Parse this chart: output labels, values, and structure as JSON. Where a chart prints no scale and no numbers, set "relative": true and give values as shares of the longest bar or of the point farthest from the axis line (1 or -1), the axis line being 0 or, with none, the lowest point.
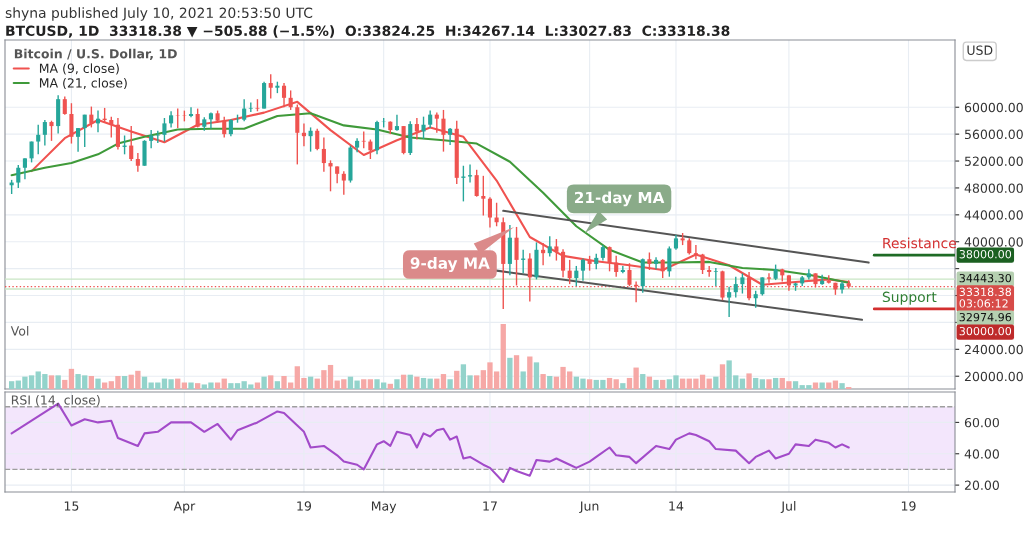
{
  "chart_data": [
    {
      "type": "candlestick",
      "title": "shyna published July 10, 2021 20:53:50 UTC",
      "subtitle": "BTCUSD, 1D  33318.38 ▼ −505.88 (−1.5%)  O:33824.25  H:34267.14  L:33027.83  C:33318.38",
      "ylabel": "USD",
      "legend_title": "Bitcoin / U.S. Dollar, 1D",
      "x": [
        "2021-03-06",
        "2021-03-07",
        "2021-03-08",
        "2021-03-09",
        "2021-03-10",
        "2021-03-11",
        "2021-03-12",
        "2021-03-13",
        "2021-03-14",
        "2021-03-15",
        "2021-03-16",
        "2021-03-17",
        "2021-03-18",
        "2021-03-19",
        "2021-03-20",
        "2021-03-21",
        "2021-03-22",
        "2021-03-23",
        "2021-03-24",
        "2021-03-25",
        "2021-03-26",
        "2021-03-27",
        "2021-03-28",
        "2021-03-29",
        "2021-03-30",
        "2021-03-31",
        "2021-04-01",
        "2021-04-02",
        "2021-04-03",
        "2021-04-04",
        "2021-04-05",
        "2021-04-06",
        "2021-04-07",
        "2021-04-08",
        "2021-04-09",
        "2021-04-10",
        "2021-04-11",
        "2021-04-12",
        "2021-04-13",
        "2021-04-14",
        "2021-04-15",
        "2021-04-16",
        "2021-04-17",
        "2021-04-18",
        "2021-04-19",
        "2021-04-20",
        "2021-04-21",
        "2021-04-22",
        "2021-04-23",
        "2021-04-24",
        "2021-04-25",
        "2021-04-26",
        "2021-04-27",
        "2021-04-28",
        "2021-04-29",
        "2021-04-30",
        "2021-05-01",
        "2021-05-02",
        "2021-05-03",
        "2021-05-04",
        "2021-05-05",
        "2021-05-06",
        "2021-05-07",
        "2021-05-08",
        "2021-05-09",
        "2021-05-10",
        "2021-05-11",
        "2021-05-12",
        "2021-05-13",
        "2021-05-14",
        "2021-05-15",
        "2021-05-16",
        "2021-05-17",
        "2021-05-18",
        "2021-05-19",
        "2021-05-20",
        "2021-05-21",
        "2021-05-22",
        "2021-05-23",
        "2021-05-24",
        "2021-05-25",
        "2021-05-26",
        "2021-05-27",
        "2021-05-28",
        "2021-05-29",
        "2021-05-30",
        "2021-05-31",
        "2021-06-01",
        "2021-06-02",
        "2021-06-03",
        "2021-06-04",
        "2021-06-05",
        "2021-06-06",
        "2021-06-07",
        "2021-06-08",
        "2021-06-09",
        "2021-06-10",
        "2021-06-11",
        "2021-06-12",
        "2021-06-13",
        "2021-06-14",
        "2021-06-15",
        "2021-06-16",
        "2021-06-17",
        "2021-06-18",
        "2021-06-19",
        "2021-06-20",
        "2021-06-21",
        "2021-06-22",
        "2021-06-23",
        "2021-06-24",
        "2021-06-25",
        "2021-06-26",
        "2021-06-27",
        "2021-06-28",
        "2021-06-29",
        "2021-06-30",
        "2021-07-01",
        "2021-07-02",
        "2021-07-03",
        "2021-07-04",
        "2021-07-05",
        "2021-07-06",
        "2021-07-07",
        "2021-07-08",
        "2021-07-09",
        "2021-07-10"
      ],
      "ohlc": [
        [
          48400,
          49200,
          47100,
          48800
        ],
        [
          48800,
          51400,
          48000,
          51000
        ],
        [
          51000,
          52400,
          49300,
          52400
        ],
        [
          52400,
          54900,
          51800,
          54900
        ],
        [
          54900,
          57400,
          53000,
          55900
        ],
        [
          55900,
          58100,
          54300,
          57800
        ],
        [
          57800,
          58000,
          55000,
          57200
        ],
        [
          57200,
          61800,
          56100,
          61200
        ],
        [
          61200,
          61600,
          58900,
          59000
        ],
        [
          59000,
          60600,
          54600,
          55600
        ],
        [
          55600,
          56900,
          53400,
          56900
        ],
        [
          56900,
          58900,
          54100,
          58900
        ],
        [
          58900,
          60100,
          57000,
          57600
        ],
        [
          57600,
          59500,
          56300,
          58300
        ],
        [
          58300,
          59900,
          57800,
          58100
        ],
        [
          58100,
          58600,
          55500,
          57400
        ],
        [
          57400,
          58400,
          53700,
          54100
        ],
        [
          54100,
          55800,
          53000,
          54300
        ],
        [
          54300,
          57200,
          52000,
          52300
        ],
        [
          52300,
          53200,
          50400,
          51300
        ],
        [
          51300,
          55100,
          51300,
          55000
        ],
        [
          55000,
          56600,
          53900,
          55800
        ],
        [
          55800,
          56500,
          54700,
          55900
        ],
        [
          55900,
          58400,
          54900,
          57600
        ],
        [
          57600,
          59400,
          57000,
          58800
        ],
        [
          58800,
          59800,
          56900,
          58750
        ],
        [
          58750,
          59500,
          57900,
          58700
        ],
        [
          58700,
          60000,
          58500,
          59000
        ],
        [
          59000,
          59800,
          57000,
          57100
        ],
        [
          57100,
          58500,
          56500,
          58200
        ],
        [
          58200,
          59200,
          56800,
          59100
        ],
        [
          59100,
          59500,
          57700,
          58000
        ],
        [
          58000,
          58600,
          55500,
          56000
        ],
        [
          56000,
          58200,
          55700,
          58100
        ],
        [
          58100,
          58900,
          57700,
          58150
        ],
        [
          58150,
          61200,
          57900,
          59800
        ],
        [
          59800,
          60700,
          59300,
          59900
        ],
        [
          59900,
          61200,
          59400,
          59800
        ],
        [
          59800,
          63800,
          59800,
          63600
        ],
        [
          63600,
          64900,
          61300,
          62900
        ],
        [
          62900,
          63800,
          62100,
          63200
        ],
        [
          63200,
          63600,
          60000,
          61400
        ],
        [
          61400,
          62500,
          59600,
          60000
        ],
        [
          60000,
          60400,
          51500,
          56200
        ],
        [
          56200,
          57600,
          54200,
          55700
        ],
        [
          55700,
          57000,
          53400,
          56500
        ],
        [
          56500,
          56800,
          53600,
          53800
        ],
        [
          53800,
          55500,
          50400,
          51700
        ],
        [
          51700,
          52100,
          47500,
          51200
        ],
        [
          51200,
          51200,
          48700,
          50100
        ],
        [
          50100,
          50500,
          47000,
          49100
        ],
        [
          49100,
          54300,
          48800,
          54000
        ],
        [
          54000,
          55400,
          53300,
          55000
        ],
        [
          55000,
          56400,
          53900,
          54900
        ],
        [
          54900,
          55200,
          52300,
          53600
        ],
        [
          53600,
          58000,
          53000,
          57800
        ],
        [
          57800,
          58400,
          57000,
          57850
        ],
        [
          57850,
          57900,
          56000,
          56600
        ],
        [
          56600,
          58900,
          56500,
          57200
        ],
        [
          57200,
          57200,
          53000,
          53200
        ],
        [
          53200,
          57900,
          52900,
          57500
        ],
        [
          57500,
          58400,
          55200,
          56400
        ],
        [
          56400,
          58600,
          55300,
          57400
        ],
        [
          57400,
          59500,
          56900,
          58900
        ],
        [
          58900,
          59200,
          56200,
          58300
        ],
        [
          58300,
          59600,
          53400,
          55900
        ],
        [
          55900,
          56900,
          54400,
          56800
        ],
        [
          56800,
          58000,
          48600,
          49500
        ],
        [
          49500,
          51300,
          46000,
          49700
        ],
        [
          49700,
          51500,
          48800,
          49900
        ],
        [
          49900,
          50700,
          46700,
          46800
        ],
        [
          46800,
          49800,
          43900,
          46400
        ],
        [
          46400,
          46600,
          42100,
          43600
        ],
        [
          43600,
          45800,
          42300,
          42900
        ],
        [
          42900,
          43600,
          30000,
          36700
        ],
        [
          36700,
          42500,
          35000,
          40600
        ],
        [
          40600,
          42200,
          33500,
          37300
        ],
        [
          37300,
          38800,
          35300,
          37500
        ],
        [
          37500,
          38300,
          31100,
          34700
        ],
        [
          34700,
          39900,
          34400,
          38800
        ],
        [
          38800,
          39800,
          36500,
          38300
        ],
        [
          38300,
          40800,
          37800,
          39300
        ],
        [
          39300,
          40400,
          37200,
          38500
        ],
        [
          38500,
          38900,
          34700,
          35700
        ],
        [
          35700,
          37300,
          33700,
          34600
        ],
        [
          34600,
          36400,
          33400,
          35700
        ],
        [
          35700,
          37500,
          34200,
          37300
        ],
        [
          37300,
          37900,
          35700,
          36700
        ],
        [
          36700,
          38200,
          35900,
          37600
        ],
        [
          37600,
          39500,
          37200,
          39200
        ],
        [
          39200,
          39300,
          35600,
          36900
        ],
        [
          36900,
          37900,
          34800,
          35500
        ],
        [
          35500,
          36400,
          35300,
          35800
        ],
        [
          35800,
          36800,
          33400,
          33600
        ],
        [
          33600,
          34100,
          31000,
          33400
        ],
        [
          33400,
          37500,
          32400,
          37400
        ],
        [
          37400,
          38400,
          35800,
          36700
        ],
        [
          36700,
          37700,
          35900,
          37300
        ],
        [
          37300,
          37400,
          34600,
          35600
        ],
        [
          35600,
          39300,
          34800,
          39000
        ],
        [
          39000,
          41000,
          38800,
          40500
        ],
        [
          40500,
          41300,
          39500,
          40200
        ],
        [
          40200,
          40500,
          38100,
          38300
        ],
        [
          38300,
          39500,
          37400,
          38100
        ],
        [
          38100,
          38200,
          35200,
          35800
        ],
        [
          35800,
          36400,
          34800,
          35500
        ],
        [
          35500,
          36100,
          33400,
          35600
        ],
        [
          35600,
          35700,
          31300,
          31700
        ],
        [
          31700,
          33300,
          28800,
          32500
        ],
        [
          32500,
          34800,
          31700,
          33700
        ],
        [
          33700,
          35300,
          32300,
          34700
        ],
        [
          34700,
          35500,
          31300,
          31600
        ],
        [
          31600,
          32700,
          30200,
          32200
        ],
        [
          32200,
          34700,
          32000,
          34700
        ],
        [
          34700,
          35300,
          33900,
          34500
        ],
        [
          34500,
          36600,
          34300,
          35900
        ],
        [
          35900,
          36000,
          34100,
          35000
        ],
        [
          35000,
          35000,
          32700,
          33500
        ],
        [
          33500,
          33900,
          32700,
          33800
        ],
        [
          33800,
          34900,
          33400,
          34700
        ],
        [
          34700,
          35900,
          34400,
          35300
        ],
        [
          35300,
          35300,
          33200,
          33700
        ],
        [
          33700,
          35100,
          33600,
          34200
        ],
        [
          34200,
          35000,
          33800,
          33900
        ],
        [
          33900,
          33900,
          32100,
          32900
        ],
        [
          32900,
          34100,
          32300,
          33800
        ],
        [
          33824.25,
          34267.14,
          33027.83,
          33318.38
        ]
      ],
      "colors": [
        "#26a69a",
        "#26a69a",
        "#26a69a",
        "#26a69a",
        "#26a69a",
        "#26a69a",
        "#ef5350",
        "#26a69a",
        "#ef5350",
        "#ef5350",
        "#26a69a",
        "#26a69a",
        "#ef5350",
        "#26a69a",
        "#ef5350",
        "#ef5350",
        "#ef5350",
        "#26a69a",
        "#ef5350",
        "#ef5350",
        "#26a69a",
        "#26a69a",
        "#26a69a",
        "#26a69a",
        "#26a69a",
        "#ef5350",
        "#ef5350",
        "#26a69a",
        "#ef5350",
        "#26a69a",
        "#26a69a",
        "#ef5350",
        "#ef5350",
        "#26a69a",
        "#26a69a",
        "#26a69a",
        "#26a69a",
        "#ef5350",
        "#26a69a",
        "#ef5350",
        "#26a69a",
        "#ef5350",
        "#ef5350",
        "#ef5350",
        "#ef5350",
        "#26a69a",
        "#ef5350",
        "#ef5350",
        "#ef5350",
        "#ef5350",
        "#ef5350",
        "#26a69a",
        "#26a69a",
        "#ef5350",
        "#ef5350",
        "#26a69a",
        "#26a69a",
        "#ef5350",
        "#26a69a",
        "#ef5350",
        "#26a69a",
        "#ef5350",
        "#26a69a",
        "#26a69a",
        "#ef5350",
        "#ef5350",
        "#26a69a",
        "#ef5350",
        "#26a69a",
        "#26a69a",
        "#ef5350",
        "#ef5350",
        "#ef5350",
        "#ef5350",
        "#ef5350",
        "#26a69a",
        "#ef5350",
        "#26a69a",
        "#ef5350",
        "#26a69a",
        "#ef5350",
        "#26a69a",
        "#ef5350",
        "#ef5350",
        "#ef5350",
        "#26a69a",
        "#26a69a",
        "#ef5350",
        "#26a69a",
        "#26a69a",
        "#ef5350",
        "#ef5350",
        "#26a69a",
        "#ef5350",
        "#ef5350",
        "#26a69a",
        "#ef5350",
        "#26a69a",
        "#ef5350",
        "#26a69a",
        "#26a69a",
        "#ef5350",
        "#ef5350",
        "#ef5350",
        "#ef5350",
        "#ef5350",
        "#26a69a",
        "#ef5350",
        "#26a69a",
        "#26a69a",
        "#26a69a",
        "#ef5350",
        "#26a69a",
        "#26a69a",
        "#ef5350",
        "#26a69a",
        "#ef5350",
        "#ef5350",
        "#26a69a",
        "#26a69a",
        "#26a69a",
        "#ef5350",
        "#26a69a",
        "#ef5350",
        "#ef5350",
        "#26a69a",
        "#ef5350"
      ],
      "series": [
        {
          "type": "line",
          "name": "MA (9, close)",
          "color": "#f0524f",
          "x": [
            "2021-03-09",
            "2021-03-14",
            "2021-03-19",
            "2021-03-24",
            "2021-03-29",
            "2021-04-03",
            "2021-04-08",
            "2021-04-13",
            "2021-04-18",
            "2021-04-23",
            "2021-04-28",
            "2021-05-03",
            "2021-05-08",
            "2021-05-13",
            "2021-05-18",
            "2021-05-23",
            "2021-05-28",
            "2021-06-02",
            "2021-06-07",
            "2021-06-12",
            "2021-06-17",
            "2021-06-22",
            "2021-06-27",
            "2021-07-02",
            "2021-07-07",
            "2021-07-10"
          ],
          "values": [
            50500,
            55400,
            58100,
            56400,
            54800,
            57400,
            58100,
            59200,
            60800,
            56600,
            52900,
            55100,
            57000,
            55600,
            49100,
            40700,
            37900,
            37100,
            36500,
            35800,
            38100,
            36500,
            33600,
            34000,
            34400,
            34000
          ]
        },
        {
          "type": "line",
          "name": "MA (21, close)",
          "color": "#3f9a3a",
          "x": [
            "2021-03-06",
            "2021-03-11",
            "2021-03-15",
            "2021-03-19",
            "2021-03-22",
            "2021-03-26",
            "2021-03-31",
            "2021-04-05",
            "2021-04-10",
            "2021-04-15",
            "2021-04-20",
            "2021-04-25",
            "2021-04-30",
            "2021-05-05",
            "2021-05-10",
            "2021-05-15",
            "2021-05-20",
            "2021-05-25",
            "2021-05-30",
            "2021-06-04",
            "2021-06-09",
            "2021-06-14",
            "2021-06-19",
            "2021-06-24",
            "2021-06-29",
            "2021-07-04",
            "2021-07-10"
          ],
          "values": [
            49900,
            51000,
            51700,
            53000,
            54600,
            55600,
            56700,
            56800,
            56800,
            58700,
            59100,
            57300,
            56700,
            55500,
            55100,
            54600,
            51900,
            47300,
            42300,
            38800,
            36900,
            36900,
            37000,
            36100,
            35800,
            35100,
            33900
          ]
        },
        {
          "type": "line",
          "color": "#555555",
          "x": [
            "2021-05-19",
            "2021-07-13"
          ],
          "values": [
            44600,
            36900
          ]
        },
        {
          "type": "line",
          "color": "#555555",
          "x": [
            "2021-05-18",
            "2021-07-12"
          ],
          "values": [
            35700,
            28400
          ]
        }
      ],
      "xlim": [
        "2021-03-05",
        "2021-07-26"
      ],
      "ylim": [
        18100,
        70000
      ],
      "xticks": [
        {
          "value": "2021-03-15",
          "label": null
        },
        {
          "value": "2021-04-01",
          "label": null
        },
        {
          "value": "2021-04-19",
          "label": null
        },
        {
          "value": "2021-05-01",
          "label": null
        },
        {
          "value": "2021-05-17",
          "label": null
        },
        {
          "value": "2021-06-01",
          "label": null
        },
        {
          "value": "2021-06-14",
          "label": null
        },
        {
          "value": "2021-07-01",
          "label": null
        },
        {
          "value": "2021-07-19",
          "label": null
        }
      ],
      "yticks": [
        {
          "value": 20000,
          "label": "20000.00"
        },
        {
          "value": 24000,
          "label": "24000.00"
        },
        {
          "value": 28000,
          "label": null
        },
        {
          "value": 32000,
          "label": null
        },
        {
          "value": 36000,
          "label": null
        },
        {
          "value": 40000,
          "label": "40000.00"
        },
        {
          "value": 44000,
          "label": "44000.00"
        },
        {
          "value": 48000,
          "label": "48000.00"
        },
        {
          "value": 52000,
          "label": "52000.00"
        },
        {
          "value": 56000,
          "label": "56000.00"
        },
        {
          "value": 60000,
          "label": "60000.00"
        }
      ],
      "tick_labels": "y",
      "grid": true,
      "legend": "top left",
      "ref_lines": [
        {
          "axis": "y",
          "value": 38000,
          "label": "38000.00",
          "color": "#1e6b25"
        },
        {
          "axis": "y",
          "value": 34443.3,
          "label": "34443.30",
          "color": "#c9e6c4",
          "line_style": "solid"
        },
        {
          "axis": "y",
          "value": 33318.38,
          "label": "33318.38\n03:06:12",
          "color": "#ef5350",
          "line_style": "dotted"
        },
        {
          "axis": "y",
          "value": 32974.96,
          "label": "32974.96",
          "color": "#c9e6c4",
          "line_style": "solid"
        },
        {
          "axis": "y",
          "value": 30000,
          "label": "30000.00",
          "color": "#d32f2f"
        }
      ],
      "annotations": [
        {
          "text": "21-day MA",
          "x": "2021-05-31",
          "y": 41000
        },
        {
          "text": "9-day MA",
          "x": "2021-05-21",
          "y": 42400
        },
        {
          "text": "Resistance",
          "x": "2021-07-15",
          "y": 38000
        },
        {
          "text": "Support",
          "x": "2021-07-15",
          "y": 30000
        }
      ]
    },
    {
      "type": "bar",
      "relative": true,
      "title": "Vol",
      "tick_labels": false,
      "x": [
        "2021-03-06",
        "2021-03-07",
        "2021-03-08",
        "2021-03-09",
        "2021-03-10",
        "2021-03-11",
        "2021-03-12",
        "2021-03-13",
        "2021-03-14",
        "2021-03-15",
        "2021-03-16",
        "2021-03-17",
        "2021-03-18",
        "2021-03-19",
        "2021-03-20",
        "2021-03-21",
        "2021-03-22",
        "2021-03-23",
        "2021-03-24",
        "2021-03-25",
        "2021-03-26",
        "2021-03-27",
        "2021-03-28",
        "2021-03-29",
        "2021-03-30",
        "2021-03-31",
        "2021-04-01",
        "2021-04-02",
        "2021-04-03",
        "2021-04-04",
        "2021-04-05",
        "2021-04-06",
        "2021-04-07",
        "2021-04-08",
        "2021-04-09",
        "2021-04-10",
        "2021-04-11",
        "2021-04-12",
        "2021-04-13",
        "2021-04-14",
        "2021-04-15",
        "2021-04-16",
        "2021-04-17",
        "2021-04-18",
        "2021-04-19",
        "2021-04-20",
        "2021-04-21",
        "2021-04-22",
        "2021-04-23",
        "2021-04-24",
        "2021-04-25",
        "2021-04-26",
        "2021-04-27",
        "2021-04-28",
        "2021-04-29",
        "2021-04-30",
        "2021-05-01",
        "2021-05-02",
        "2021-05-03",
        "2021-05-04",
        "2021-05-05",
        "2021-05-06",
        "2021-05-07",
        "2021-05-08",
        "2021-05-09",
        "2021-05-10",
        "2021-05-11",
        "2021-05-12",
        "2021-05-13",
        "2021-05-14",
        "2021-05-15",
        "2021-05-16",
        "2021-05-17",
        "2021-05-18",
        "2021-05-19",
        "2021-05-20",
        "2021-05-21",
        "2021-05-22",
        "2021-05-23",
        "2021-05-24",
        "2021-05-25",
        "2021-05-26",
        "2021-05-27",
        "2021-05-28",
        "2021-05-29",
        "2021-05-30",
        "2021-05-31",
        "2021-06-01",
        "2021-06-02",
        "2021-06-03",
        "2021-06-04",
        "2021-06-05",
        "2021-06-06",
        "2021-06-07",
        "2021-06-08",
        "2021-06-09",
        "2021-06-10",
        "2021-06-11",
        "2021-06-12",
        "2021-06-13",
        "2021-06-14",
        "2021-06-15",
        "2021-06-16",
        "2021-06-17",
        "2021-06-18",
        "2021-06-19",
        "2021-06-20",
        "2021-06-21",
        "2021-06-22",
        "2021-06-23",
        "2021-06-24",
        "2021-06-25",
        "2021-06-26",
        "2021-06-27",
        "2021-06-28",
        "2021-06-29",
        "2021-06-30",
        "2021-07-01",
        "2021-07-02",
        "2021-07-03",
        "2021-07-04",
        "2021-07-05",
        "2021-07-06",
        "2021-07-07",
        "2021-07-08",
        "2021-07-09",
        "2021-07-10"
      ],
      "values": [
        0.12,
        0.13,
        0.19,
        0.21,
        0.27,
        0.23,
        0.21,
        0.21,
        0.14,
        0.31,
        0.23,
        0.21,
        0.2,
        0.16,
        0.1,
        0.12,
        0.2,
        0.2,
        0.22,
        0.28,
        0.19,
        0.1,
        0.1,
        0.16,
        0.15,
        0.16,
        0.1,
        0.1,
        0.09,
        0.07,
        0.1,
        0.1,
        0.16,
        0.09,
        0.09,
        0.12,
        0.07,
        0.1,
        0.19,
        0.21,
        0.12,
        0.2,
        0.1,
        0.35,
        0.17,
        0.19,
        0.16,
        0.29,
        0.37,
        0.13,
        0.15,
        0.19,
        0.13,
        0.15,
        0.15,
        0.15,
        0.1,
        0.08,
        0.15,
        0.22,
        0.22,
        0.19,
        0.17,
        0.16,
        0.16,
        0.23,
        0.15,
        0.28,
        0.38,
        0.21,
        0.21,
        0.29,
        0.41,
        0.27,
        1,
        0.48,
        0.52,
        0.27,
        0.5,
        0.41,
        0.23,
        0.2,
        0.19,
        0.34,
        0.27,
        0.19,
        0.16,
        0.15,
        0.14,
        0.14,
        0.17,
        0.15,
        0.09,
        0.17,
        0.33,
        0.23,
        0.19,
        0.14,
        0.14,
        0.15,
        0.21,
        0.16,
        0.16,
        0.16,
        0.22,
        0.16,
        0.19,
        0.38,
        0.44,
        0.21,
        0.16,
        0.24,
        0.17,
        0.15,
        0.15,
        0.17,
        0.17,
        0.12,
        0.12,
        0.06,
        0.06,
        0.1,
        0.1,
        0.1,
        0.13,
        0.09,
        0.03
      ],
      "colors": [
        "#93d3cb",
        "#93d3cb",
        "#93d3cb",
        "#93d3cb",
        "#93d3cb",
        "#93d3cb",
        "#f6a8a6",
        "#93d3cb",
        "#f6a8a6",
        "#f6a8a6",
        "#93d3cb",
        "#93d3cb",
        "#f6a8a6",
        "#93d3cb",
        "#f6a8a6",
        "#f6a8a6",
        "#f6a8a6",
        "#93d3cb",
        "#f6a8a6",
        "#f6a8a6",
        "#93d3cb",
        "#93d3cb",
        "#93d3cb",
        "#93d3cb",
        "#93d3cb",
        "#f6a8a6",
        "#f6a8a6",
        "#93d3cb",
        "#f6a8a6",
        "#93d3cb",
        "#93d3cb",
        "#f6a8a6",
        "#f6a8a6",
        "#93d3cb",
        "#93d3cb",
        "#93d3cb",
        "#93d3cb",
        "#f6a8a6",
        "#93d3cb",
        "#f6a8a6",
        "#93d3cb",
        "#f6a8a6",
        "#f6a8a6",
        "#f6a8a6",
        "#f6a8a6",
        "#93d3cb",
        "#f6a8a6",
        "#f6a8a6",
        "#f6a8a6",
        "#f6a8a6",
        "#f6a8a6",
        "#93d3cb",
        "#93d3cb",
        "#f6a8a6",
        "#f6a8a6",
        "#93d3cb",
        "#93d3cb",
        "#f6a8a6",
        "#93d3cb",
        "#f6a8a6",
        "#93d3cb",
        "#f6a8a6",
        "#93d3cb",
        "#93d3cb",
        "#f6a8a6",
        "#f6a8a6",
        "#93d3cb",
        "#f6a8a6",
        "#93d3cb",
        "#93d3cb",
        "#f6a8a6",
        "#f6a8a6",
        "#f6a8a6",
        "#f6a8a6",
        "#f6a8a6",
        "#93d3cb",
        "#f6a8a6",
        "#93d3cb",
        "#f6a8a6",
        "#93d3cb",
        "#f6a8a6",
        "#93d3cb",
        "#f6a8a6",
        "#f6a8a6",
        "#f6a8a6",
        "#93d3cb",
        "#93d3cb",
        "#f6a8a6",
        "#93d3cb",
        "#93d3cb",
        "#f6a8a6",
        "#f6a8a6",
        "#93d3cb",
        "#f6a8a6",
        "#f6a8a6",
        "#93d3cb",
        "#f6a8a6",
        "#93d3cb",
        "#f6a8a6",
        "#93d3cb",
        "#93d3cb",
        "#f6a8a6",
        "#f6a8a6",
        "#f6a8a6",
        "#f6a8a6",
        "#f6a8a6",
        "#93d3cb",
        "#f6a8a6",
        "#93d3cb",
        "#93d3cb",
        "#93d3cb",
        "#f6a8a6",
        "#93d3cb",
        "#93d3cb",
        "#f6a8a6",
        "#93d3cb",
        "#f6a8a6",
        "#f6a8a6",
        "#93d3cb",
        "#93d3cb",
        "#93d3cb",
        "#f6a8a6",
        "#93d3cb",
        "#f6a8a6",
        "#f6a8a6",
        "#93d3cb",
        "#f6a8a6"
      ],
      "xlim": [
        "2021-03-05",
        "2021-07-26"
      ]
    },
    {
      "type": "line",
      "title": "RSI (14, close)",
      "series": [
        {
          "color": "#a24bc9",
          "x": [
            "2021-03-06",
            "2021-03-13",
            "2021-03-15",
            "2021-03-17",
            "2021-03-19",
            "2021-03-21",
            "2021-03-22",
            "2021-03-25",
            "2021-03-26",
            "2021-03-28",
            "2021-03-30",
            "2021-04-02",
            "2021-04-04",
            "2021-04-06",
            "2021-04-08",
            "2021-04-09",
            "2021-04-12",
            "2021-04-15",
            "2021-04-16",
            "2021-04-18",
            "2021-04-19",
            "2021-04-20",
            "2021-04-22",
            "2021-04-24",
            "2021-04-25",
            "2021-04-27",
            "2021-04-28",
            "2021-04-30",
            "2021-05-01",
            "2021-05-02",
            "2021-05-03",
            "2021-05-05",
            "2021-05-06",
            "2021-05-07",
            "2021-05-08",
            "2021-05-09",
            "2021-05-10",
            "2021-05-11",
            "2021-05-12",
            "2021-05-13",
            "2021-05-14",
            "2021-05-16",
            "2021-05-17",
            "2021-05-19",
            "2021-05-20",
            "2021-05-21",
            "2021-05-23",
            "2021-05-24",
            "2021-05-26",
            "2021-05-27",
            "2021-05-29",
            "2021-05-30",
            "2021-06-01",
            "2021-06-02",
            "2021-06-04",
            "2021-06-05",
            "2021-06-07",
            "2021-06-08",
            "2021-06-11",
            "2021-06-13",
            "2021-06-14",
            "2021-06-16",
            "2021-06-17",
            "2021-06-19",
            "2021-06-20",
            "2021-06-23",
            "2021-06-25",
            "2021-06-26",
            "2021-06-28",
            "2021-06-29",
            "2021-07-01",
            "2021-07-02",
            "2021-07-04",
            "2021-07-05",
            "2021-07-07",
            "2021-07-08",
            "2021-07-09",
            "2021-07-10"
          ],
          "values": [
            53,
            72,
            58,
            62,
            60,
            61,
            50,
            45,
            53,
            54,
            60,
            60,
            54,
            59,
            49,
            55,
            60,
            67,
            66,
            58,
            54,
            44,
            45,
            39,
            35,
            33,
            30,
            46,
            48,
            45,
            54,
            52,
            44,
            53,
            51,
            55,
            56,
            49,
            51,
            37,
            38,
            33,
            31,
            22,
            31,
            29,
            26,
            36,
            35,
            37,
            33,
            31,
            35,
            38,
            44,
            39,
            38,
            34,
            45,
            43,
            49,
            53,
            52,
            48,
            43,
            42,
            34,
            38,
            42,
            37,
            40,
            46,
            45,
            49,
            47,
            44,
            46,
            44
          ]
        }
      ],
      "xlim": [
        "2021-03-05",
        "2021-07-26"
      ],
      "ylim": [
        15.6,
        79.4
      ],
      "xticks": [
        {
          "value": "2021-03-15",
          "label": "15"
        },
        {
          "value": "2021-04-01",
          "label": "Apr"
        },
        {
          "value": "2021-04-19",
          "label": "19"
        },
        {
          "value": "2021-05-01",
          "label": "May"
        },
        {
          "value": "2021-05-17",
          "label": "17"
        },
        {
          "value": "2021-06-01",
          "label": "Jun"
        },
        {
          "value": "2021-06-14",
          "label": "14"
        },
        {
          "value": "2021-07-01",
          "label": "Jul"
        },
        {
          "value": "2021-07-19",
          "label": "19"
        }
      ],
      "yticks": [
        {
          "value": 20,
          "label": "20.00"
        },
        {
          "value": 40,
          "label": "40.00"
        },
        {
          "value": 60,
          "label": "60.00"
        }
      ],
      "grid": true,
      "bands": [
        {
          "axis": "y",
          "from": 30,
          "to": 70,
          "color": "#f3e6fc"
        }
      ],
      "ref_lines": [
        {
          "axis": "y",
          "value": 70,
          "color": "#9e9e9e",
          "line_style": "dashed"
        },
        {
          "axis": "y",
          "value": 30,
          "color": "#9e9e9e",
          "line_style": "dashed"
        }
      ]
    }
  ]
}
